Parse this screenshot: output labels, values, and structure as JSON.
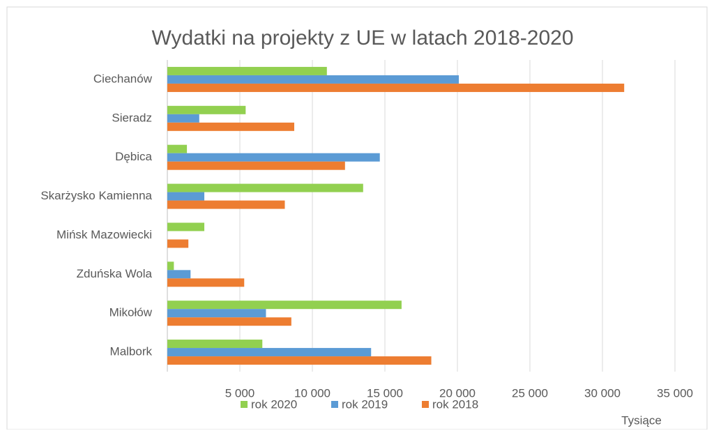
{
  "chart_data": {
    "type": "bar",
    "orientation": "horizontal",
    "title": "Wydatki na projekty z UE w latach 2018-2020",
    "categories": [
      "Ciechanów",
      "Sieradz",
      "Dębica",
      "Skarżysko Kamienna",
      "Mińsk Mazowiecki",
      "Zduńska Wola",
      "Mikołów",
      "Malbork"
    ],
    "series": [
      {
        "name": "rok 2020",
        "color": "#92d050",
        "values": [
          11000,
          5400,
          1350,
          13500,
          2550,
          450,
          16150,
          6550
        ]
      },
      {
        "name": "rok 2019",
        "color": "#5b9bd5",
        "values": [
          20100,
          2200,
          14650,
          2550,
          0,
          1600,
          6800,
          14050
        ]
      },
      {
        "name": "rok 2018",
        "color": "#ed7d31",
        "values": [
          31500,
          8750,
          12250,
          8100,
          1450,
          5300,
          8550,
          18200
        ]
      }
    ],
    "xlim": [
      0,
      35000
    ],
    "xticks": [
      {
        "value": 5000,
        "label": "5 000"
      },
      {
        "value": 10000,
        "label": "10 000"
      },
      {
        "value": 15000,
        "label": "15 000"
      },
      {
        "value": 20000,
        "label": "20 000"
      },
      {
        "value": 25000,
        "label": "25 000"
      },
      {
        "value": 30000,
        "label": "30 000"
      },
      {
        "value": 35000,
        "label": "35 000"
      }
    ],
    "x_unit_label": "Tysiące",
    "grid": true,
    "legend": "bottom"
  }
}
